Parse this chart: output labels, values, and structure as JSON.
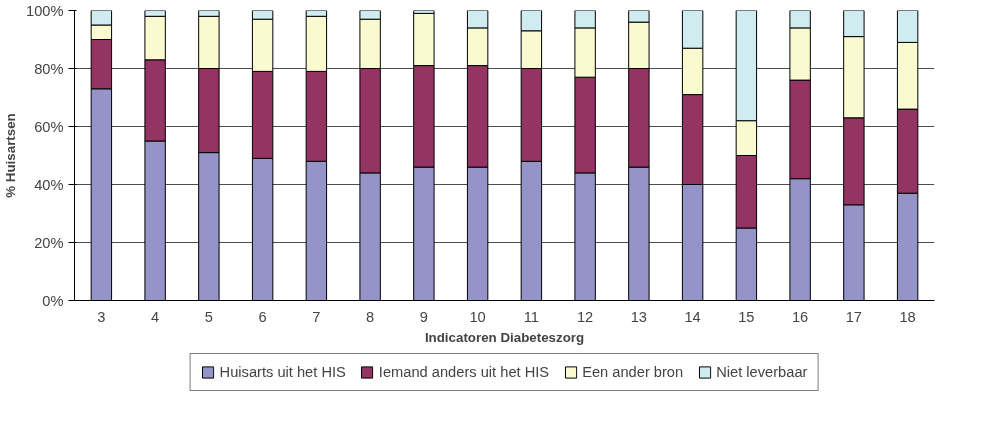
{
  "chart_data": {
    "type": "bar",
    "stacked": true,
    "xlabel": "Indicatoren Diabeteszorg",
    "ylabel": "% Huisartsen",
    "categories": [
      "3",
      "4",
      "5",
      "6",
      "7",
      "8",
      "9",
      "10",
      "11",
      "12",
      "13",
      "14",
      "15",
      "16",
      "17",
      "18"
    ],
    "series": [
      {
        "name": "Huisarts uit het HIS",
        "color": "#9494c8",
        "values": [
          73,
          55,
          51,
          49,
          48,
          44,
          46,
          46,
          48,
          44,
          46,
          40,
          25,
          42,
          33,
          37
        ]
      },
      {
        "name": "Iemand anders uit het HIS",
        "color": "#943462",
        "values": [
          17,
          28,
          29,
          30,
          31,
          36,
          35,
          35,
          32,
          33,
          34,
          31,
          25,
          34,
          30,
          29
        ]
      },
      {
        "name": "Een ander bron",
        "color": "#fafad0",
        "values": [
          5,
          15,
          18,
          18,
          19,
          17,
          18,
          13,
          13,
          17,
          16,
          16,
          12,
          18,
          28,
          23
        ]
      },
      {
        "name": "Niet leverbaar",
        "color": "#d0ecf0",
        "values": [
          5,
          2,
          2,
          3,
          2,
          3,
          1,
          6,
          7,
          6,
          4,
          13,
          38,
          6,
          9,
          11
        ]
      }
    ],
    "ylim": [
      0,
      100
    ],
    "yticks": [
      {
        "value": 0,
        "label": "0%"
      },
      {
        "value": 20,
        "label": "20%"
      },
      {
        "value": 40,
        "label": "40%"
      },
      {
        "value": 60,
        "label": "60%"
      },
      {
        "value": 80,
        "label": "80%"
      },
      {
        "value": 100,
        "label": "100%"
      }
    ],
    "grid": "y",
    "legend": "bottom"
  }
}
